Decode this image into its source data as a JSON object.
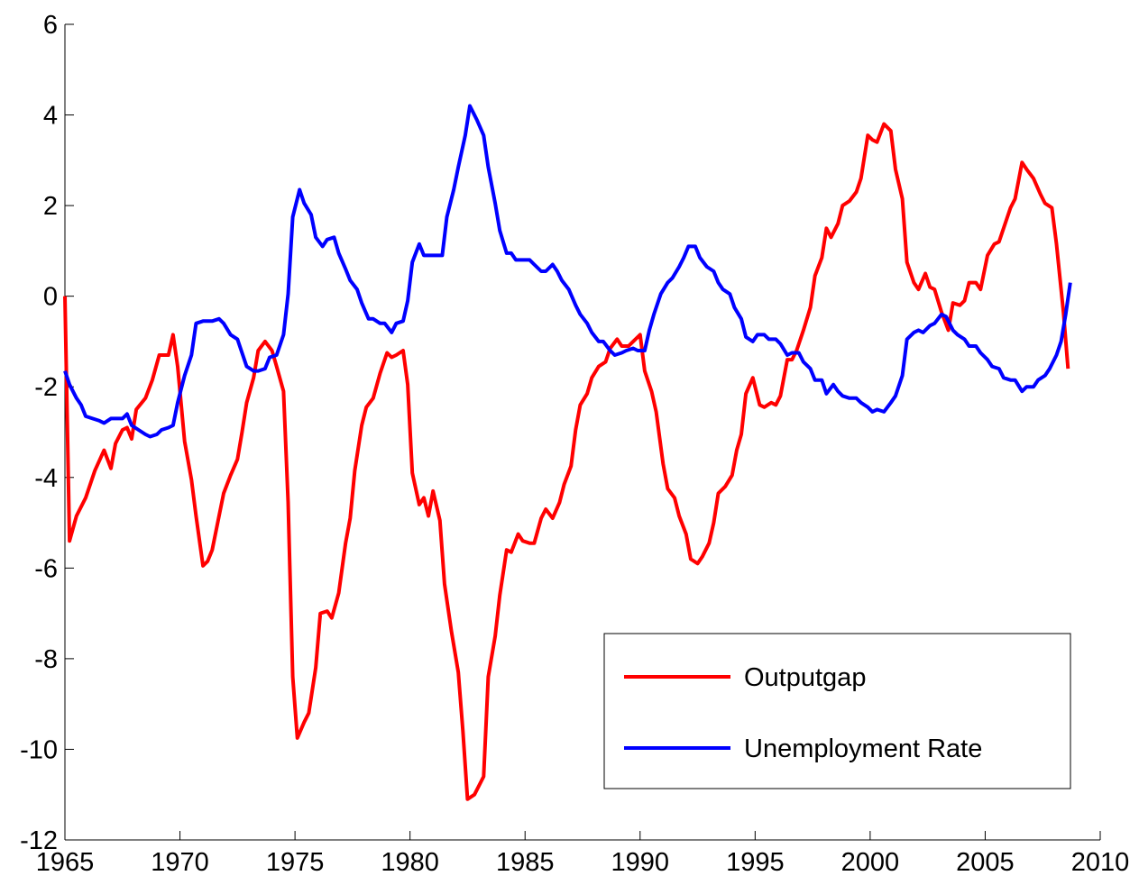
{
  "chart_data": {
    "type": "line",
    "xlim": [
      1965,
      2010
    ],
    "xticks": [
      1965,
      1970,
      1975,
      1980,
      1985,
      1990,
      1995,
      2000,
      2005,
      2010
    ],
    "ylim": [
      -12,
      6
    ],
    "yticks": [
      -12,
      -10,
      -8,
      -6,
      -4,
      -2,
      0,
      2,
      4,
      6
    ],
    "grid": false,
    "legend": "lower right",
    "series": [
      {
        "name": "Outputgap",
        "color": "#ff0000",
        "x": [
          1965,
          1965.2,
          1965.5,
          1965.9,
          1966.3,
          1966.7,
          1967.0,
          1967.2,
          1967.5,
          1967.7,
          1967.9,
          1968.1,
          1968.5,
          1968.8,
          1969.1,
          1969.5,
          1969.7,
          1969.9,
          1970.2,
          1970.5,
          1970.7,
          1971.0,
          1971.2,
          1971.4,
          1971.7,
          1971.9,
          1972.2,
          1972.5,
          1972.7,
          1972.9,
          1973.2,
          1973.4,
          1973.7,
          1974.0,
          1974.2,
          1974.5,
          1974.7,
          1974.9,
          1975.1,
          1975.4,
          1975.6,
          1975.9,
          1976.1,
          1976.4,
          1976.6,
          1976.9,
          1977.2,
          1977.4,
          1977.6,
          1977.9,
          1978.1,
          1978.4,
          1978.7,
          1979.0,
          1979.2,
          1979.4,
          1979.7,
          1979.9,
          1980.1,
          1980.4,
          1980.6,
          1980.8,
          1981.0,
          1981.3,
          1981.5,
          1981.8,
          1982.1,
          1982.3,
          1982.5,
          1982.8,
          1983.2,
          1983.4,
          1983.7,
          1983.9,
          1984.2,
          1984.4,
          1984.7,
          1984.9,
          1985.2,
          1985.4,
          1985.7,
          1985.9,
          1986.2,
          1986.5,
          1986.7,
          1987.0,
          1987.2,
          1987.4,
          1987.7,
          1987.9,
          1988.2,
          1988.5,
          1988.7,
          1989.0,
          1989.2,
          1989.5,
          1989.7,
          1990.0,
          1990.2,
          1990.5,
          1990.7,
          1991.0,
          1991.2,
          1991.5,
          1991.7,
          1992.0,
          1992.2,
          1992.5,
          1992.7,
          1993.0,
          1993.2,
          1993.4,
          1993.7,
          1994.0,
          1994.2,
          1994.4,
          1994.6,
          1994.9,
          1995.2,
          1995.4,
          1995.7,
          1995.9,
          1996.1,
          1996.4,
          1996.6,
          1996.8,
          1997.1,
          1997.4,
          1997.6,
          1997.9,
          1998.1,
          1998.3,
          1998.6,
          1998.8,
          1999.1,
          1999.4,
          1999.6,
          1999.9,
          2000.1,
          2000.3,
          2000.6,
          2000.9,
          2001.1,
          2001.4,
          2001.6,
          2001.9,
          2002.1,
          2002.4,
          2002.6,
          2002.8,
          2003.1,
          2003.4,
          2003.6,
          2003.9,
          2004.1,
          2004.3,
          2004.6,
          2004.8,
          2005.1,
          2005.4,
          2005.6,
          2005.9,
          2006.1,
          2006.3,
          2006.6,
          2006.8,
          2007.1,
          2007.4,
          2007.6,
          2007.9,
          2008.1,
          2008.4,
          2008.6
        ],
        "values": [
          0,
          -5.4,
          -4.85,
          -4.45,
          -3.85,
          -3.4,
          -3.8,
          -3.25,
          -2.95,
          -2.9,
          -3.15,
          -2.5,
          -2.25,
          -1.85,
          -1.3,
          -1.3,
          -0.85,
          -1.55,
          -3.2,
          -4.05,
          -4.85,
          -5.95,
          -5.85,
          -5.6,
          -4.85,
          -4.35,
          -3.95,
          -3.6,
          -3.0,
          -2.35,
          -1.8,
          -1.2,
          -1.0,
          -1.2,
          -1.55,
          -2.1,
          -4.55,
          -8.4,
          -9.75,
          -9.4,
          -9.2,
          -8.2,
          -7.0,
          -6.95,
          -7.1,
          -6.55,
          -5.45,
          -4.9,
          -3.85,
          -2.85,
          -2.45,
          -2.25,
          -1.7,
          -1.25,
          -1.35,
          -1.3,
          -1.2,
          -1.95,
          -3.9,
          -4.6,
          -4.45,
          -4.85,
          -4.3,
          -4.95,
          -6.35,
          -7.4,
          -8.3,
          -9.6,
          -11.1,
          -11.0,
          -10.6,
          -8.4,
          -7.5,
          -6.6,
          -5.6,
          -5.65,
          -5.25,
          -5.4,
          -5.45,
          -5.45,
          -4.9,
          -4.7,
          -4.9,
          -4.55,
          -4.15,
          -3.75,
          -2.95,
          -2.4,
          -2.15,
          -1.8,
          -1.55,
          -1.45,
          -1.15,
          -0.95,
          -1.1,
          -1.1,
          -1.0,
          -0.85,
          -1.65,
          -2.1,
          -2.55,
          -3.7,
          -4.25,
          -4.45,
          -4.85,
          -5.25,
          -5.8,
          -5.9,
          -5.75,
          -5.45,
          -5.0,
          -4.35,
          -4.2,
          -3.95,
          -3.4,
          -3.05,
          -2.15,
          -1.8,
          -2.4,
          -2.45,
          -2.35,
          -2.4,
          -2.2,
          -1.4,
          -1.4,
          -1.2,
          -0.75,
          -0.25,
          0.45,
          0.85,
          1.5,
          1.3,
          1.6,
          2.0,
          2.1,
          2.3,
          2.6,
          3.55,
          3.45,
          3.4,
          3.8,
          3.65,
          2.8,
          2.15,
          0.75,
          0.3,
          0.15,
          0.5,
          0.2,
          0.15,
          -0.35,
          -0.75,
          -0.15,
          -0.2,
          -0.1,
          0.3,
          0.3,
          0.15,
          0.9,
          1.15,
          1.2,
          1.65,
          1.95,
          2.15,
          2.95,
          2.8,
          2.6,
          2.25,
          2.05,
          1.95,
          1.15,
          -0.35,
          -1.6
        ]
      },
      {
        "name": "Unemployment Rate",
        "color": "#0000ff",
        "x": [
          1965,
          1965.2,
          1965.5,
          1965.7,
          1965.9,
          1966.2,
          1966.5,
          1966.7,
          1967.0,
          1967.2,
          1967.5,
          1967.7,
          1967.9,
          1968.2,
          1968.5,
          1968.7,
          1969.0,
          1969.2,
          1969.5,
          1969.7,
          1969.9,
          1970.2,
          1970.5,
          1970.7,
          1971.0,
          1971.2,
          1971.4,
          1971.7,
          1971.9,
          1972.2,
          1972.5,
          1972.7,
          1972.9,
          1973.2,
          1973.4,
          1973.7,
          1973.9,
          1974.2,
          1974.5,
          1974.7,
          1974.9,
          1975.2,
          1975.4,
          1975.7,
          1975.9,
          1976.2,
          1976.4,
          1976.7,
          1976.9,
          1977.2,
          1977.4,
          1977.7,
          1977.9,
          1978.2,
          1978.4,
          1978.7,
          1978.9,
          1979.2,
          1979.4,
          1979.7,
          1979.9,
          1980.1,
          1980.4,
          1980.6,
          1980.9,
          1981.1,
          1981.4,
          1981.6,
          1981.9,
          1982.1,
          1982.4,
          1982.6,
          1982.9,
          1983.2,
          1983.4,
          1983.7,
          1983.9,
          1984.2,
          1984.4,
          1984.6,
          1984.9,
          1985.2,
          1985.4,
          1985.7,
          1985.9,
          1986.2,
          1986.4,
          1986.6,
          1986.9,
          1987.2,
          1987.4,
          1987.7,
          1987.9,
          1988.2,
          1988.4,
          1988.7,
          1988.9,
          1989.2,
          1989.4,
          1989.7,
          1989.9,
          1990.2,
          1990.4,
          1990.6,
          1990.9,
          1991.2,
          1991.4,
          1991.7,
          1991.9,
          1992.1,
          1992.4,
          1992.6,
          1992.9,
          1993.2,
          1993.4,
          1993.6,
          1993.9,
          1994.1,
          1994.4,
          1994.6,
          1994.9,
          1995.1,
          1995.4,
          1995.6,
          1995.9,
          1996.1,
          1996.4,
          1996.6,
          1996.9,
          1997.1,
          1997.4,
          1997.6,
          1997.9,
          1998.1,
          1998.4,
          1998.6,
          1998.8,
          1999.1,
          1999.4,
          1999.6,
          1999.9,
          2000.1,
          2000.3,
          2000.6,
          2000.9,
          2001.1,
          2001.4,
          2001.6,
          2001.9,
          2002.1,
          2002.3,
          2002.6,
          2002.8,
          2003.1,
          2003.3,
          2003.6,
          2003.8,
          2004.1,
          2004.3,
          2004.6,
          2004.8,
          2005.1,
          2005.3,
          2005.6,
          2005.8,
          2006.1,
          2006.3,
          2006.6,
          2006.8,
          2007.1,
          2007.3,
          2007.6,
          2007.8,
          2008.1,
          2008.3,
          2008.5,
          2008.7
        ],
        "values": [
          -1.65,
          -1.95,
          -2.25,
          -2.4,
          -2.65,
          -2.7,
          -2.75,
          -2.8,
          -2.7,
          -2.7,
          -2.7,
          -2.6,
          -2.85,
          -2.95,
          -3.05,
          -3.1,
          -3.05,
          -2.95,
          -2.9,
          -2.85,
          -2.35,
          -1.75,
          -1.3,
          -0.6,
          -0.55,
          -0.55,
          -0.55,
          -0.5,
          -0.6,
          -0.85,
          -0.95,
          -1.25,
          -1.55,
          -1.65,
          -1.65,
          -1.6,
          -1.35,
          -1.3,
          -0.85,
          0.05,
          1.75,
          2.35,
          2.05,
          1.8,
          1.3,
          1.1,
          1.25,
          1.3,
          0.95,
          0.6,
          0.35,
          0.15,
          -0.15,
          -0.5,
          -0.5,
          -0.6,
          -0.6,
          -0.8,
          -0.6,
          -0.55,
          -0.1,
          0.75,
          1.15,
          0.9,
          0.9,
          0.9,
          0.9,
          1.75,
          2.35,
          2.85,
          3.55,
          4.2,
          3.9,
          3.55,
          2.85,
          2.05,
          1.45,
          0.95,
          0.95,
          0.8,
          0.8,
          0.8,
          0.7,
          0.55,
          0.55,
          0.7,
          0.55,
          0.35,
          0.15,
          -0.2,
          -0.4,
          -0.6,
          -0.8,
          -1.0,
          -1.0,
          -1.2,
          -1.3,
          -1.25,
          -1.2,
          -1.15,
          -1.2,
          -1.2,
          -0.75,
          -0.4,
          0.05,
          0.3,
          0.4,
          0.65,
          0.85,
          1.1,
          1.1,
          0.85,
          0.65,
          0.55,
          0.3,
          0.15,
          0.05,
          -0.25,
          -0.5,
          -0.9,
          -1.0,
          -0.85,
          -0.85,
          -0.95,
          -0.95,
          -1.05,
          -1.3,
          -1.25,
          -1.25,
          -1.45,
          -1.6,
          -1.85,
          -1.85,
          -2.15,
          -1.95,
          -2.1,
          -2.2,
          -2.25,
          -2.25,
          -2.35,
          -2.45,
          -2.55,
          -2.5,
          -2.55,
          -2.35,
          -2.2,
          -1.75,
          -0.95,
          -0.8,
          -0.75,
          -0.8,
          -0.65,
          -0.6,
          -0.4,
          -0.45,
          -0.75,
          -0.85,
          -0.95,
          -1.1,
          -1.1,
          -1.25,
          -1.4,
          -1.55,
          -1.6,
          -1.8,
          -1.85,
          -1.85,
          -2.1,
          -2.0,
          -2.0,
          -1.85,
          -1.75,
          -1.6,
          -1.3,
          -1.0,
          -0.4,
          0.3
        ]
      }
    ]
  }
}
